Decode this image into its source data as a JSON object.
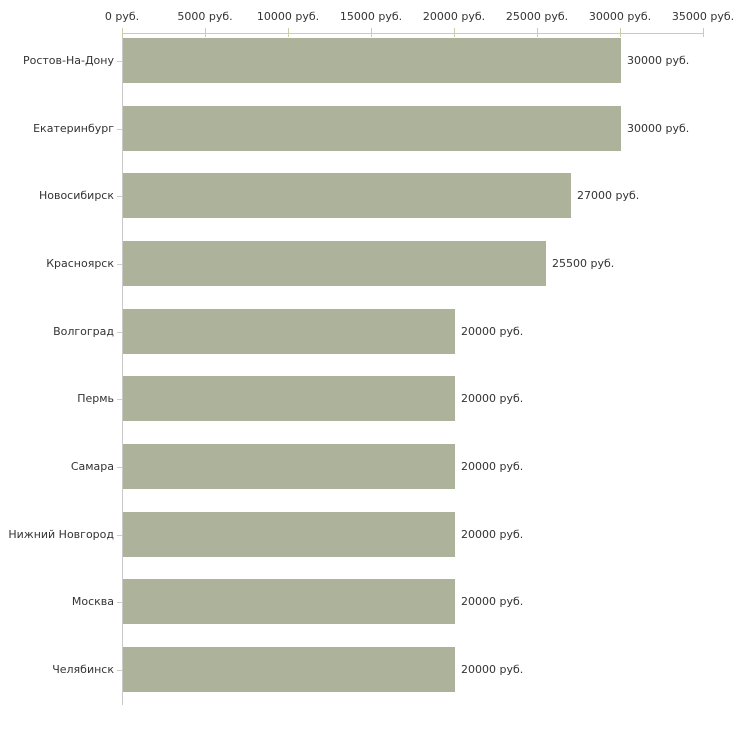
{
  "chart_data": {
    "type": "bar",
    "orientation": "horizontal",
    "title": "",
    "xlabel": "",
    "ylabel": "",
    "unit": "руб.",
    "xlim": [
      0,
      35000
    ],
    "grid": false,
    "legend": null,
    "categories": [
      "Ростов-На-Дону",
      "Екатеринбург",
      "Новосибирск",
      "Красноярск",
      "Волгоград",
      "Пермь",
      "Самара",
      "Нижний Новгород",
      "Москва",
      "Челябинск"
    ],
    "values": [
      30000,
      30000,
      27000,
      25500,
      20000,
      20000,
      20000,
      20000,
      20000,
      20000
    ],
    "value_labels": [
      "30000 руб.",
      "30000 руб.",
      "27000 руб.",
      "25500 руб.",
      "20000 руб.",
      "20000 руб.",
      "20000 руб.",
      "20000 руб.",
      "20000 руб.",
      "20000 руб."
    ],
    "x_tick_values": [
      0,
      5000,
      10000,
      15000,
      20000,
      25000,
      30000,
      35000
    ],
    "x_tick_labels": [
      "0 руб.",
      "5000 руб.",
      "10000 руб.",
      "15000 руб.",
      "20000 руб.",
      "25000 руб.",
      "30000 руб.",
      "35000 руб."
    ],
    "colors": {
      "bar": "#acb39a",
      "axis": "#c9c9c9",
      "x_tick": "#cdcda6",
      "y_tick": "#cfcfc0",
      "text": "#333333",
      "background": "#ffffff"
    }
  }
}
